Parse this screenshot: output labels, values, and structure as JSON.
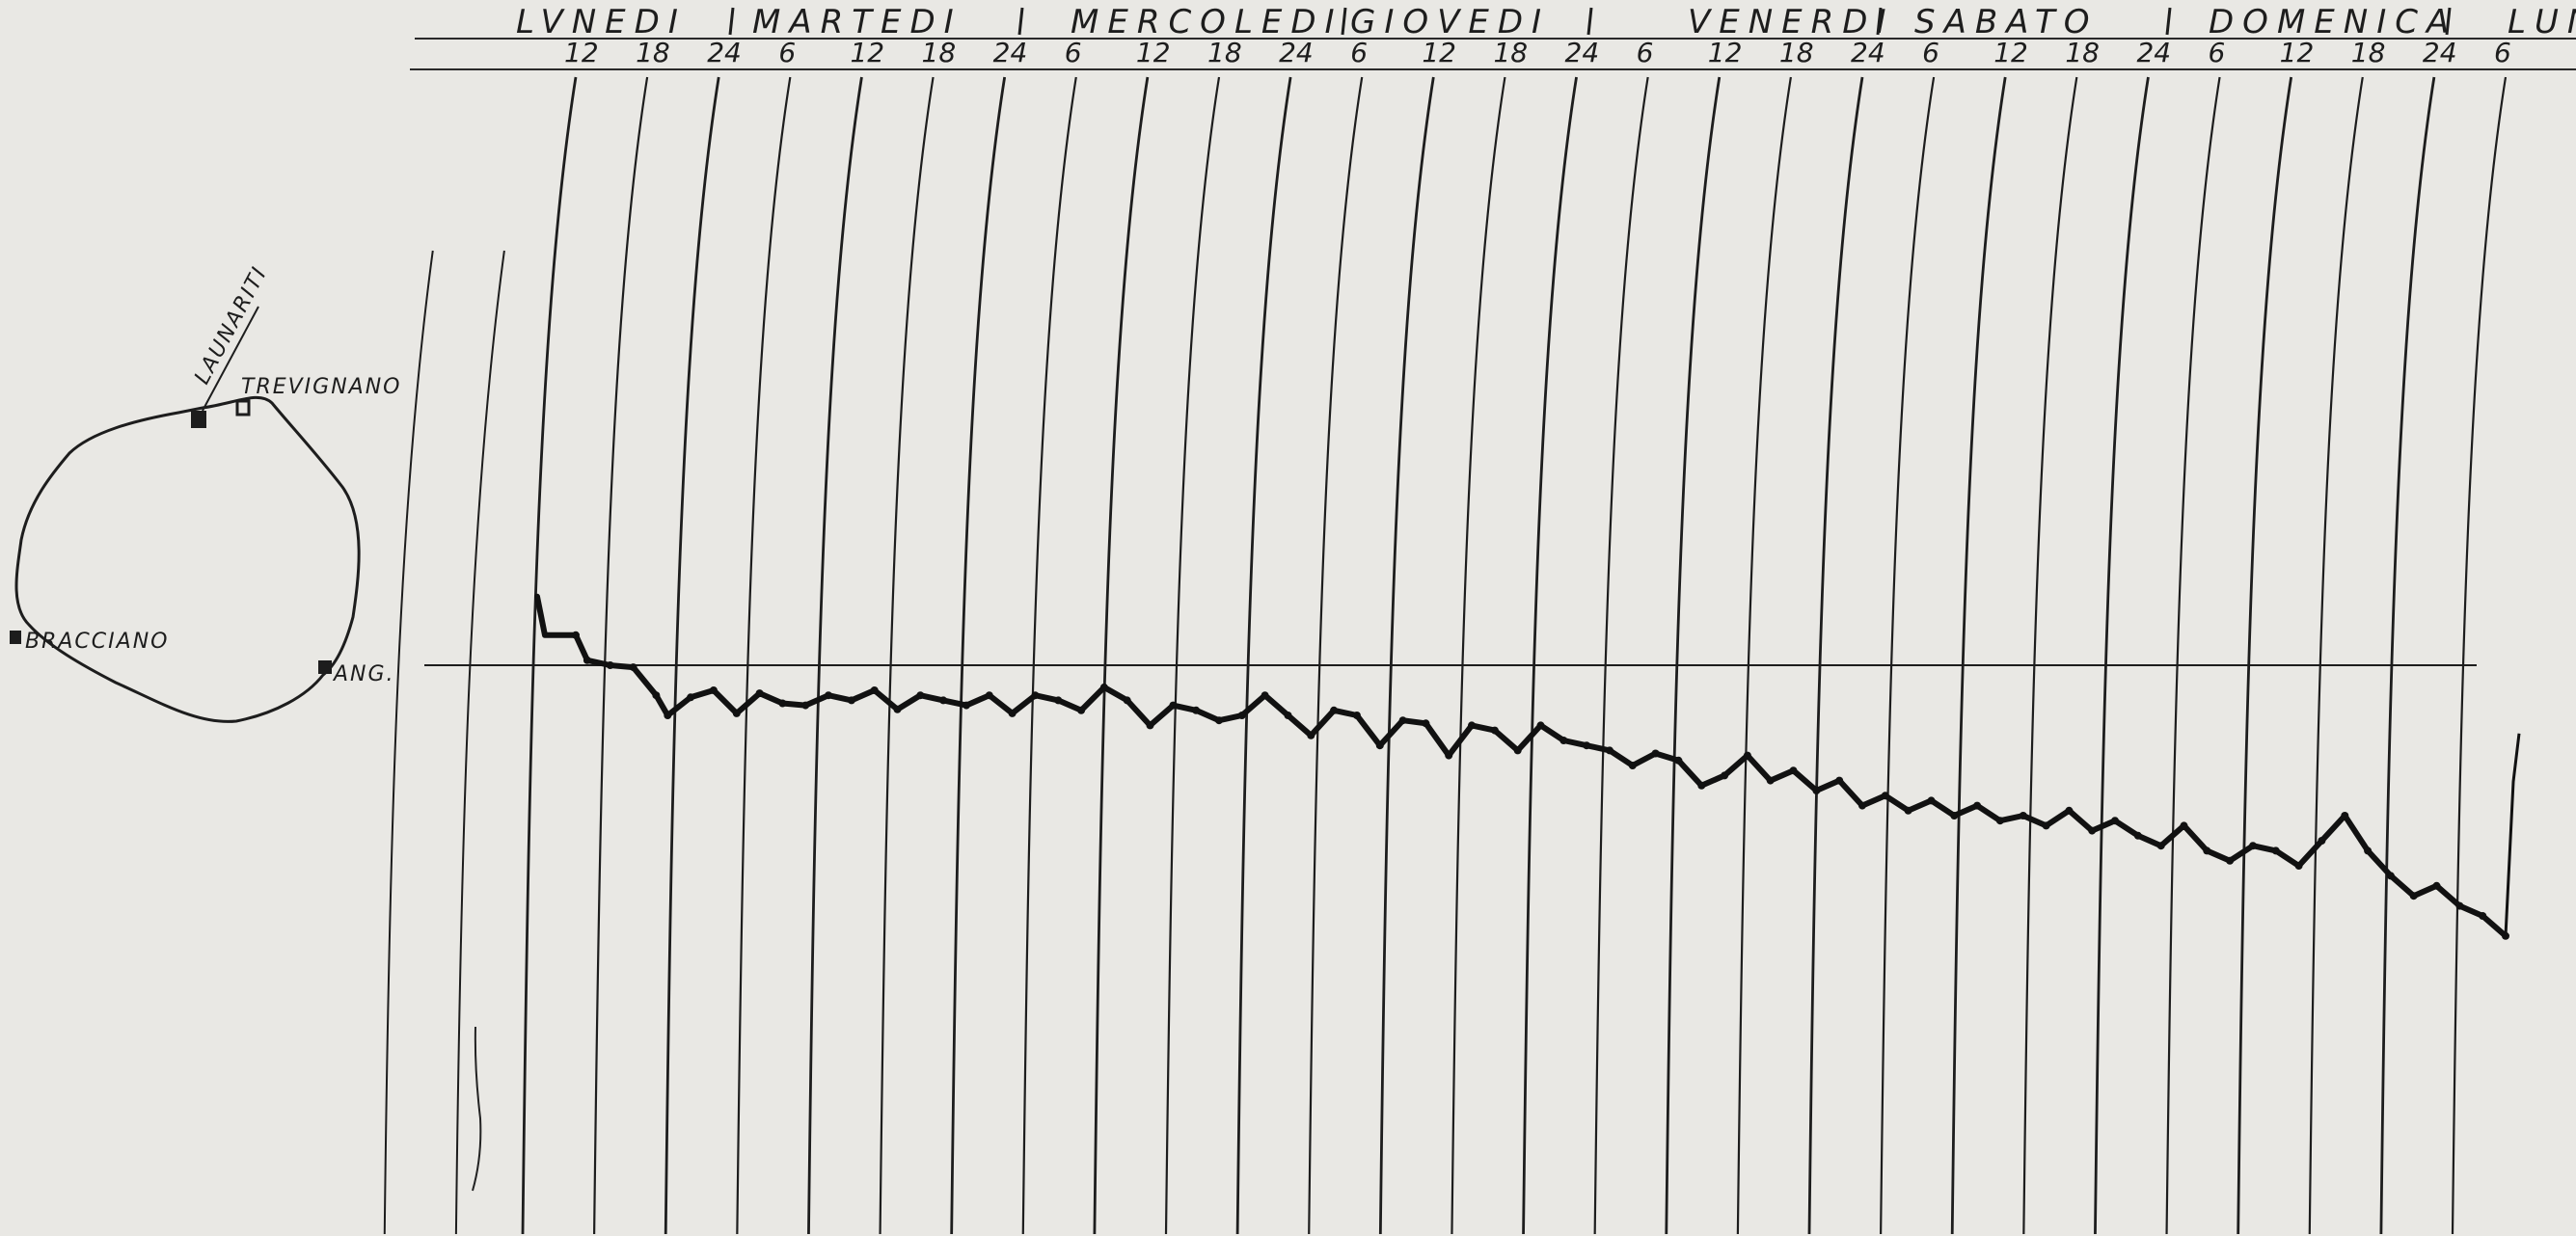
{
  "chart_data": {
    "type": "line",
    "title": "",
    "xlabel": "",
    "ylabel": "",
    "days": [
      "LVNEDI",
      "MARTEDI",
      "MERCOLEDI",
      "GIOVEDI",
      "VENERDI",
      "SABATO",
      "DOMENICA",
      "LUN"
    ],
    "hour_ticks": [
      "12",
      "18",
      "24",
      "6",
      "12",
      "18",
      "24",
      "6",
      "12",
      "18",
      "24",
      "6",
      "12",
      "18",
      "24",
      "6",
      "12",
      "18",
      "24",
      "6",
      "12",
      "18",
      "24",
      "6",
      "12",
      "18",
      "24",
      "6"
    ],
    "x_unit": "hours from Monday 12:00",
    "series": [
      {
        "x": [
          0,
          1,
          3,
          5,
          7,
          8,
          10,
          12,
          14,
          16,
          18,
          20,
          22,
          24,
          26,
          28,
          30,
          32,
          34,
          36,
          38,
          40,
          42,
          44,
          46,
          48,
          50,
          52,
          54,
          56,
          58,
          60,
          62,
          64,
          66,
          68,
          70,
          72,
          74,
          76,
          78,
          80,
          82,
          84,
          86,
          88,
          90,
          92,
          94,
          96,
          98,
          100,
          102,
          104,
          106,
          108,
          110,
          112,
          114,
          116,
          118,
          120,
          122,
          124,
          126,
          128,
          130,
          132,
          134,
          136,
          138,
          140,
          142,
          144,
          146,
          148,
          150,
          152,
          154,
          156,
          158,
          160,
          162,
          164,
          166,
          168
        ],
        "y": [
          0.3,
          0.05,
          0.0,
          -0.02,
          -0.3,
          -0.5,
          -0.32,
          -0.25,
          -0.48,
          -0.28,
          -0.38,
          -0.4,
          -0.3,
          -0.35,
          -0.25,
          -0.44,
          -0.3,
          -0.35,
          -0.4,
          -0.3,
          -0.48,
          -0.3,
          -0.35,
          -0.45,
          -0.22,
          -0.35,
          -0.6,
          -0.4,
          -0.45,
          -0.55,
          -0.5,
          -0.3,
          -0.5,
          -0.7,
          -0.45,
          -0.5,
          -0.8,
          -0.55,
          -0.58,
          -0.9,
          -0.6,
          -0.65,
          -0.85,
          -0.6,
          -0.75,
          -0.8,
          -0.85,
          -1.0,
          -0.88,
          -0.95,
          -1.2,
          -1.1,
          -0.9,
          -1.15,
          -1.05,
          -1.25,
          -1.15,
          -1.4,
          -1.3,
          -1.45,
          -1.35,
          -1.5,
          -1.4,
          -1.55,
          -1.5,
          -1.6,
          -1.45,
          -1.65,
          -1.55,
          -1.7,
          -1.8,
          -1.6,
          -1.85,
          -1.95,
          -1.8,
          -1.85,
          -2.0,
          -1.75,
          -1.5,
          -1.85,
          -2.1,
          -2.3,
          -2.2,
          -2.4,
          -2.5,
          -2.7
        ]
      }
    ],
    "reference_line": "horizontal datum line"
  },
  "map": {
    "labels": [
      "LAUNARITI",
      "TREVIGNANO",
      "BRACCIANO",
      "ANG."
    ]
  }
}
